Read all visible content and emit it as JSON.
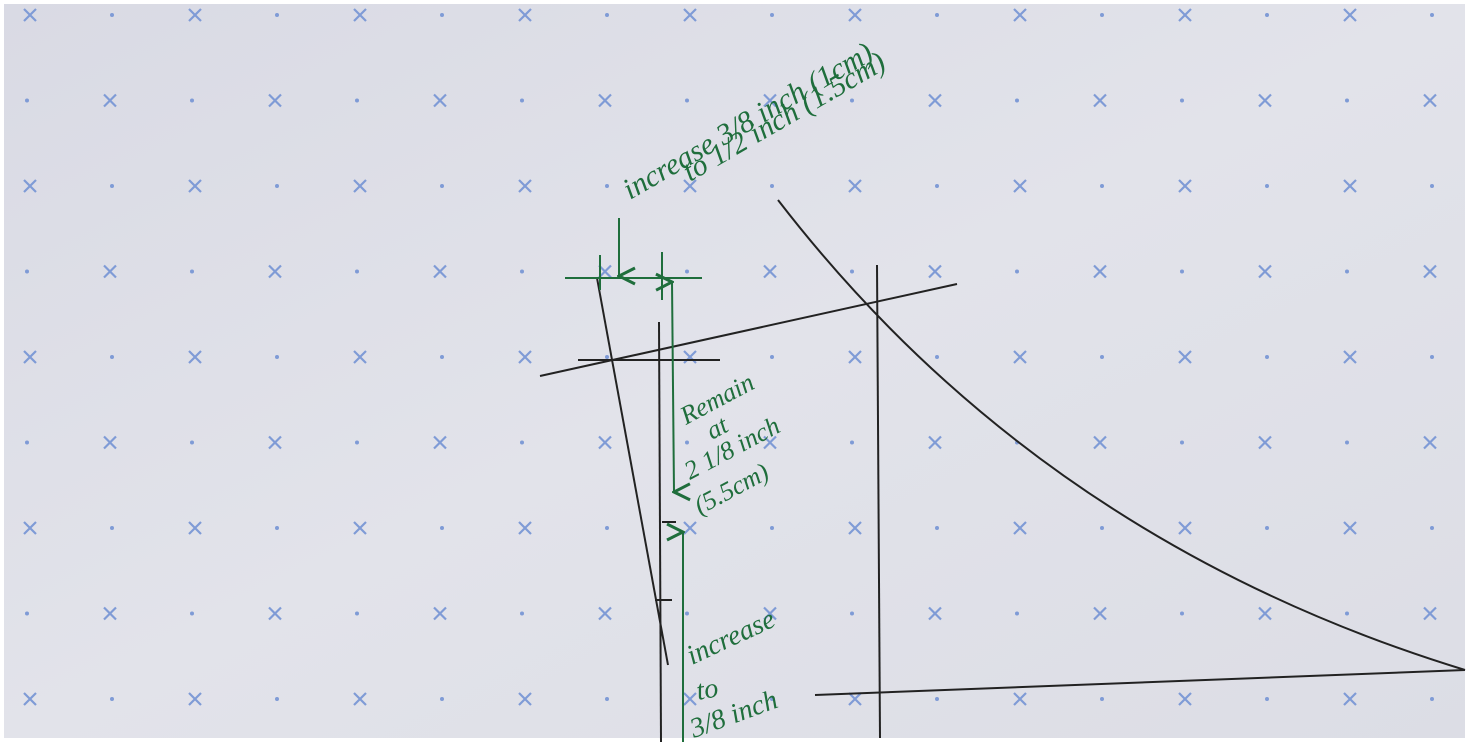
{
  "annotations": [
    {
      "lines": [
        "increase 3/8 inch (1cm)",
        "to 1/2 inch (1.5cm)"
      ]
    },
    {
      "lines": [
        "Remain",
        "at",
        "2 1/8 inch",
        "(5.5cm)"
      ]
    },
    {
      "lines": [
        "increase",
        "to",
        "3/8 inch"
      ]
    }
  ]
}
